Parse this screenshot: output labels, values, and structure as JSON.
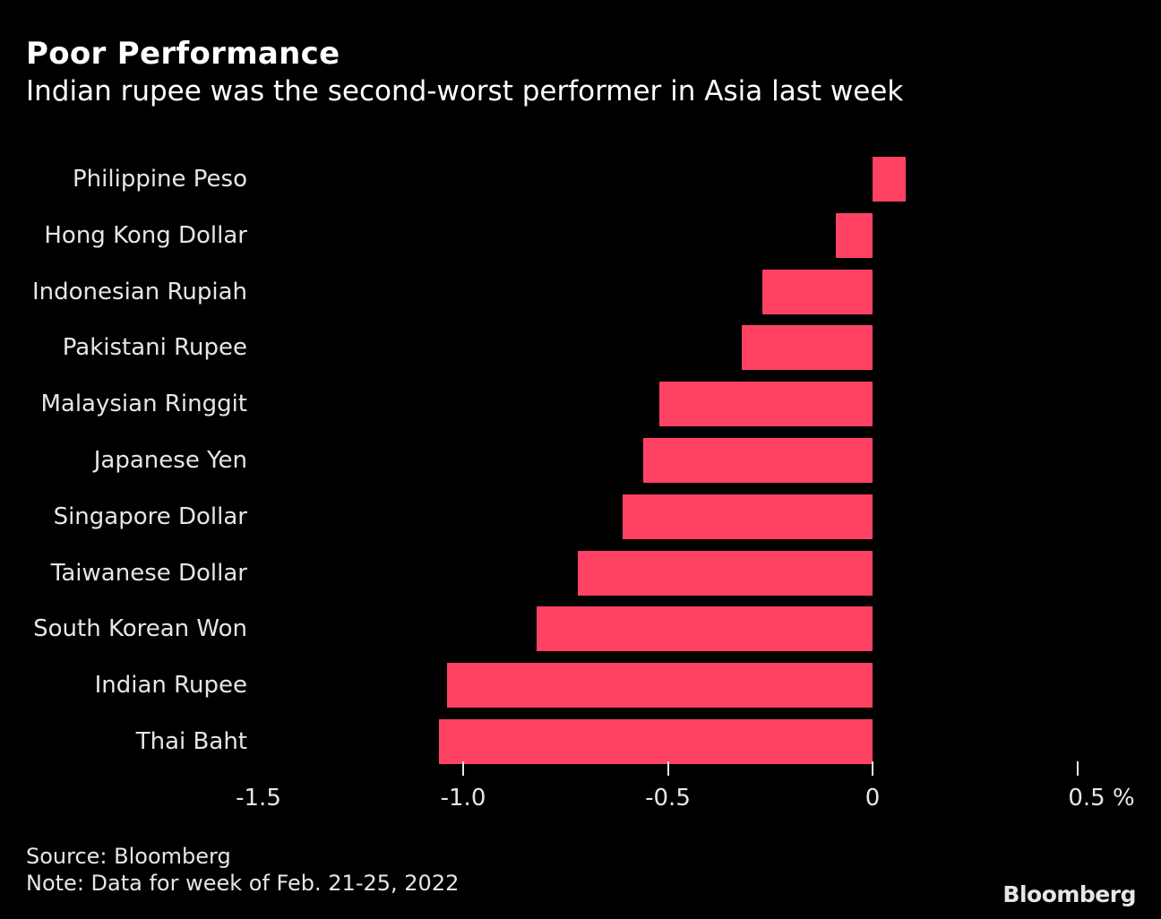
{
  "header": {
    "title": "Poor Performance",
    "subtitle": "Indian rupee was the second-worst performer in Asia last week"
  },
  "footer": {
    "source": "Source: Bloomberg",
    "note": "Note: Data for week of Feb. 21-25, 2022",
    "logo": "Bloomberg"
  },
  "axis": {
    "ticks": [
      {
        "value": -1.5,
        "label": "-1.5",
        "show_tick": false
      },
      {
        "value": -1.0,
        "label": "-1.0",
        "show_tick": true
      },
      {
        "value": -0.5,
        "label": "-0.5",
        "show_tick": true
      },
      {
        "value": 0,
        "label": "0",
        "show_tick": true
      },
      {
        "value": 0.5,
        "label": "0.5 %",
        "show_tick": true
      }
    ]
  },
  "colors": {
    "bar": "#ff4163",
    "background": "#000000",
    "text": "#e6e6e6"
  },
  "chart_data": {
    "type": "bar",
    "orientation": "horizontal",
    "title": "Poor Performance",
    "subtitle": "Indian rupee was the second-worst performer in Asia last week",
    "categories": [
      "Philippine Peso",
      "Hong Kong Dollar",
      "Indonesian Rupiah",
      "Pakistani Rupee",
      "Malaysian Ringgit",
      "Japanese Yen",
      "Singapore Dollar",
      "Taiwanese Dollar",
      "South Korean Won",
      "Indian Rupee",
      "Thai Baht"
    ],
    "values": [
      0.08,
      -0.09,
      -0.27,
      -0.32,
      -0.52,
      -0.56,
      -0.61,
      -0.72,
      -0.82,
      -1.04,
      -1.06
    ],
    "xlabel": "%",
    "ylabel": "",
    "xlim": [
      -1.5,
      0.5
    ],
    "xticks": [
      -1.5,
      -1.0,
      -0.5,
      0,
      0.5
    ],
    "grid": false,
    "legend": null,
    "source": "Source: Bloomberg",
    "note": "Note: Data for week of Feb. 21-25, 2022"
  }
}
